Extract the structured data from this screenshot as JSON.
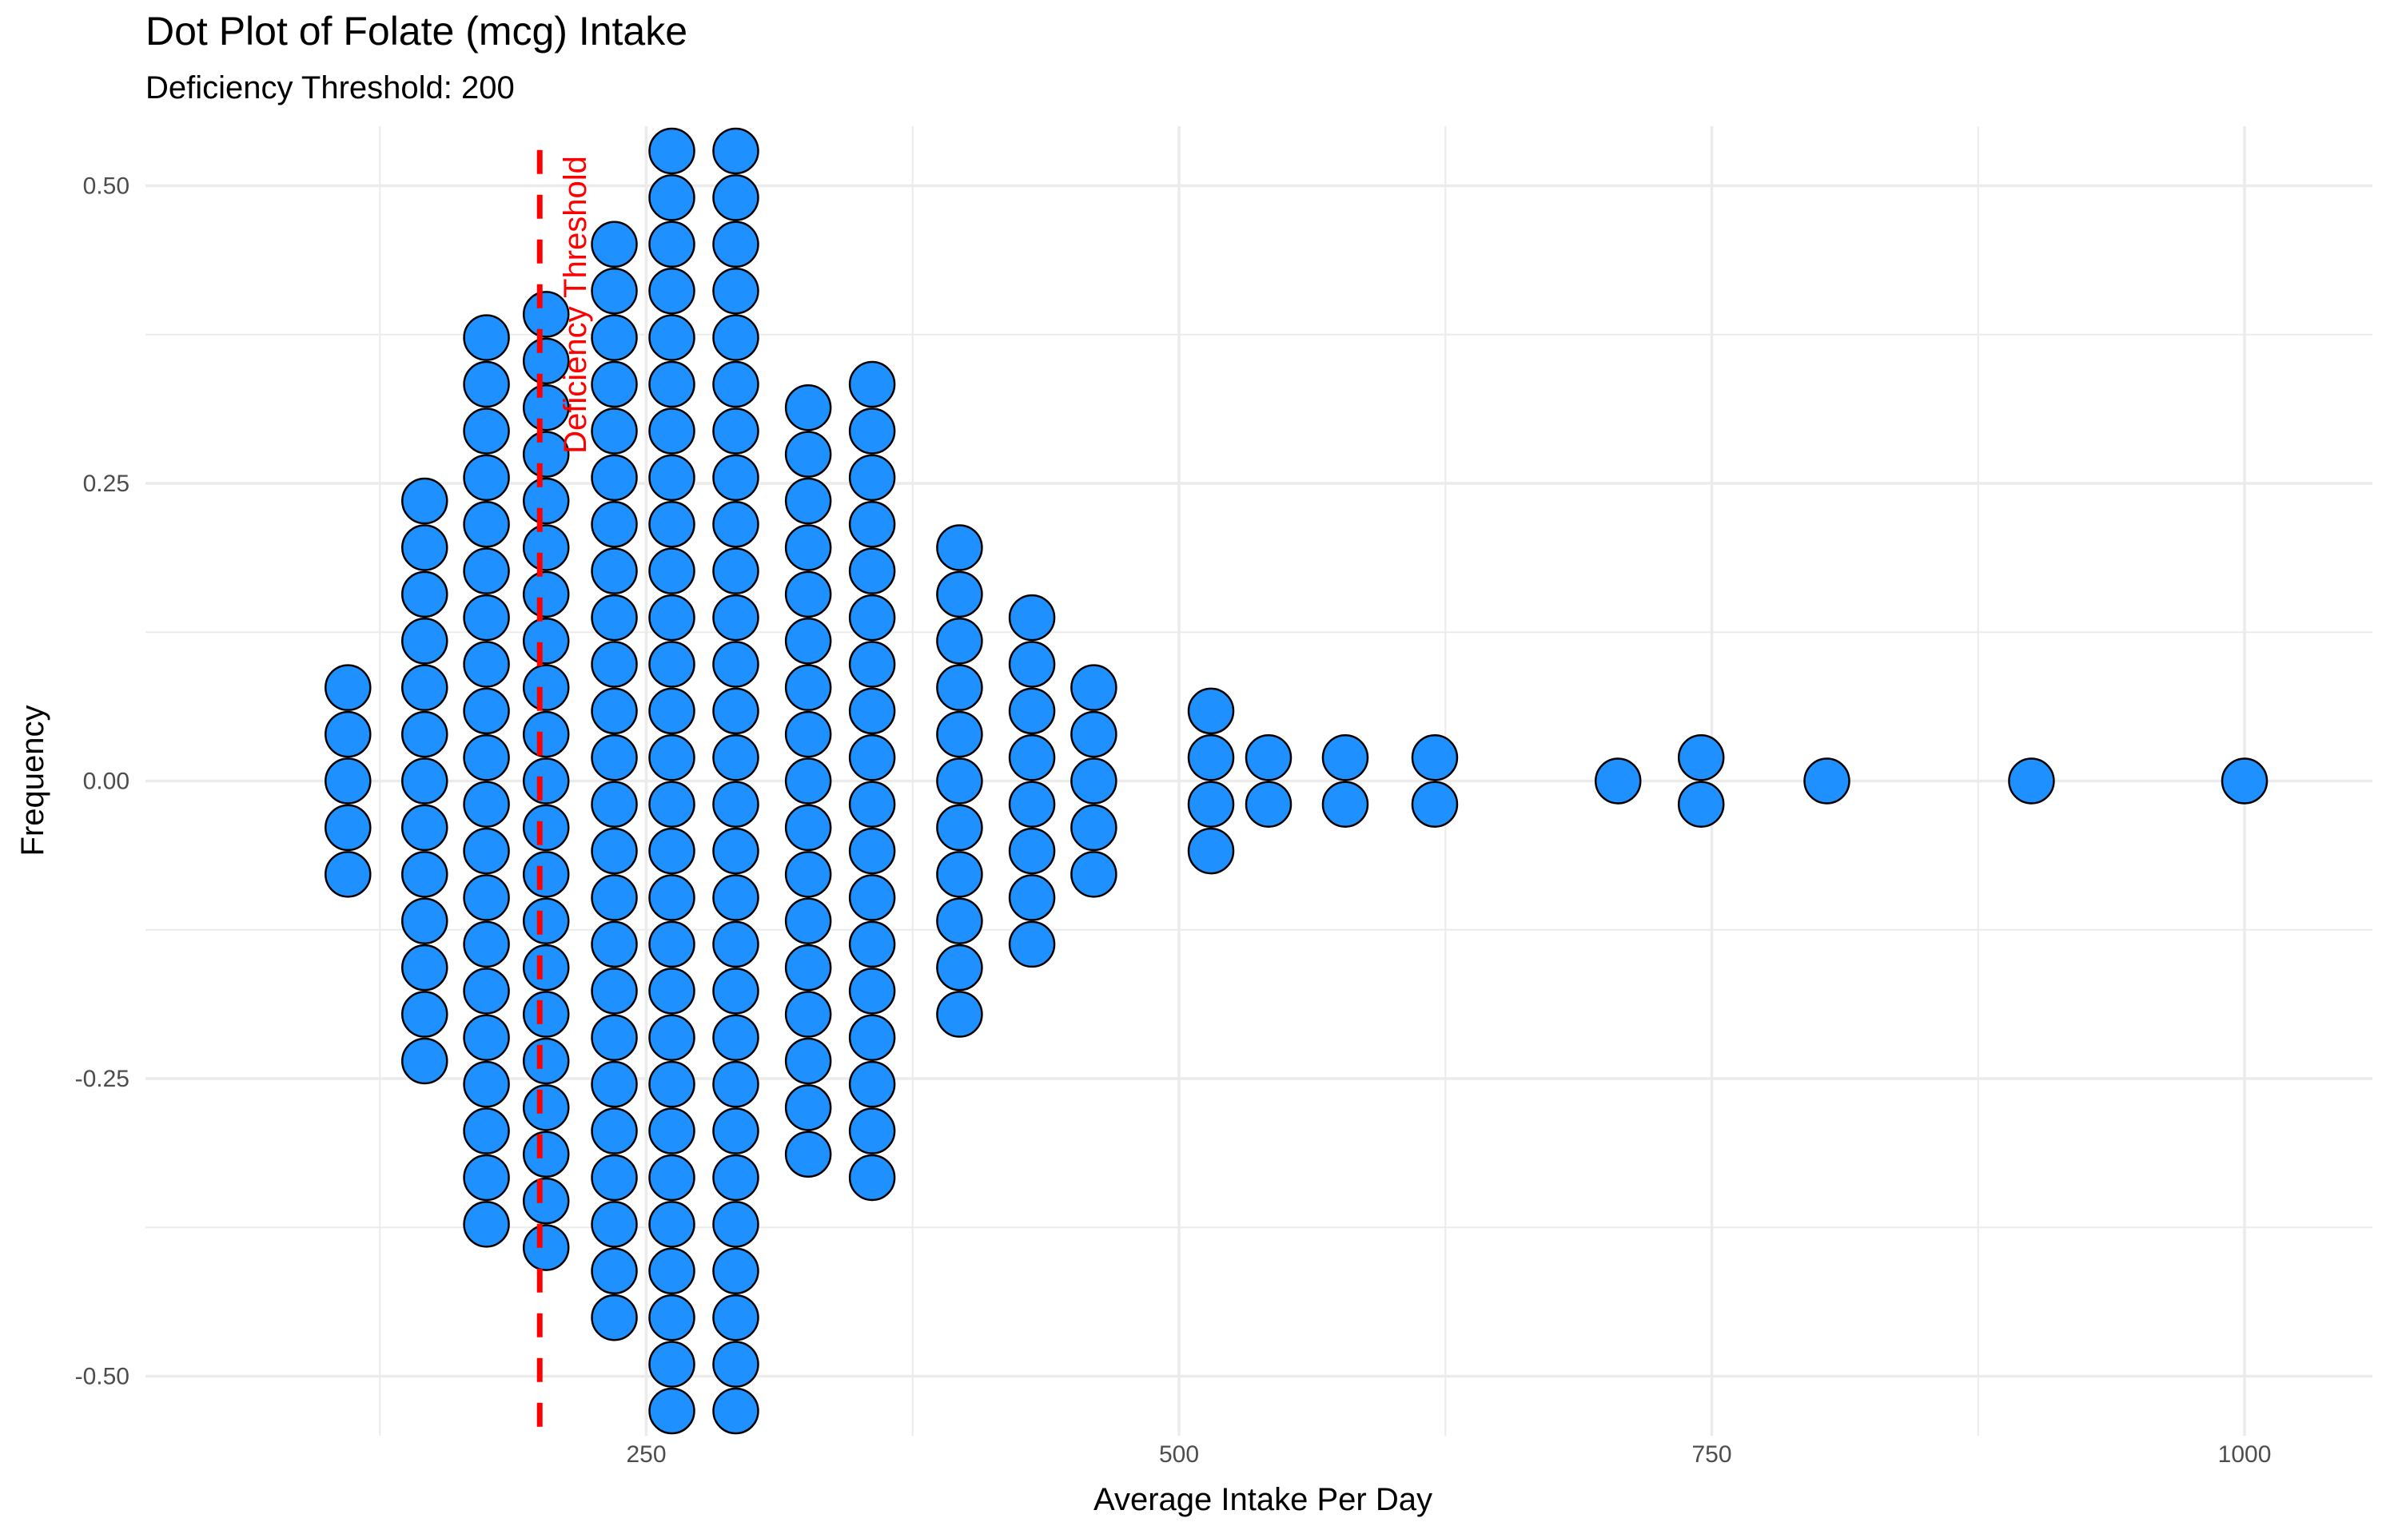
{
  "chart_data": {
    "type": "dot",
    "title": "Dot Plot of Folate (mcg) Intake",
    "subtitle": "Deficiency Threshold: 200",
    "xlabel": "Average Intake Per Day",
    "ylabel": "Frequency",
    "xlim": [
      15,
      1060
    ],
    "ylim": [
      -0.55,
      0.55
    ],
    "x_ticks": [
      250,
      500,
      750,
      1000
    ],
    "x_tick_labels": [
      "250",
      "500",
      "750",
      "1000"
    ],
    "y_ticks": [
      -0.5,
      -0.25,
      0,
      0.25,
      0.5
    ],
    "y_tick_labels": [
      "-0.50",
      "-0.25",
      "0.00",
      "0.25",
      "0.50"
    ],
    "grid": true,
    "colors": {
      "dot_fill": "#1E90FF",
      "dot_stroke": "#000000",
      "threshold": "#FF0000",
      "grid": "#EBEBEB"
    },
    "threshold": {
      "x": 200,
      "label": "Deficiency Threshold"
    },
    "stacks": [
      {
        "x": 110,
        "count": 5
      },
      {
        "x": 146,
        "count": 13
      },
      {
        "x": 175,
        "count": 20
      },
      {
        "x": 203,
        "count": 21
      },
      {
        "x": 235,
        "count": 24
      },
      {
        "x": 262,
        "count": 28
      },
      {
        "x": 292,
        "count": 28
      },
      {
        "x": 326,
        "count": 17
      },
      {
        "x": 356,
        "count": 18
      },
      {
        "x": 397,
        "count": 11
      },
      {
        "x": 431,
        "count": 8
      },
      {
        "x": 460,
        "count": 5
      },
      {
        "x": 515,
        "count": 4
      },
      {
        "x": 542,
        "count": 2
      },
      {
        "x": 578,
        "count": 2
      },
      {
        "x": 620,
        "count": 2
      },
      {
        "x": 706,
        "count": 1
      },
      {
        "x": 745,
        "count": 2
      },
      {
        "x": 804,
        "count": 1
      },
      {
        "x": 900,
        "count": 1
      },
      {
        "x": 1000,
        "count": 1
      }
    ]
  }
}
